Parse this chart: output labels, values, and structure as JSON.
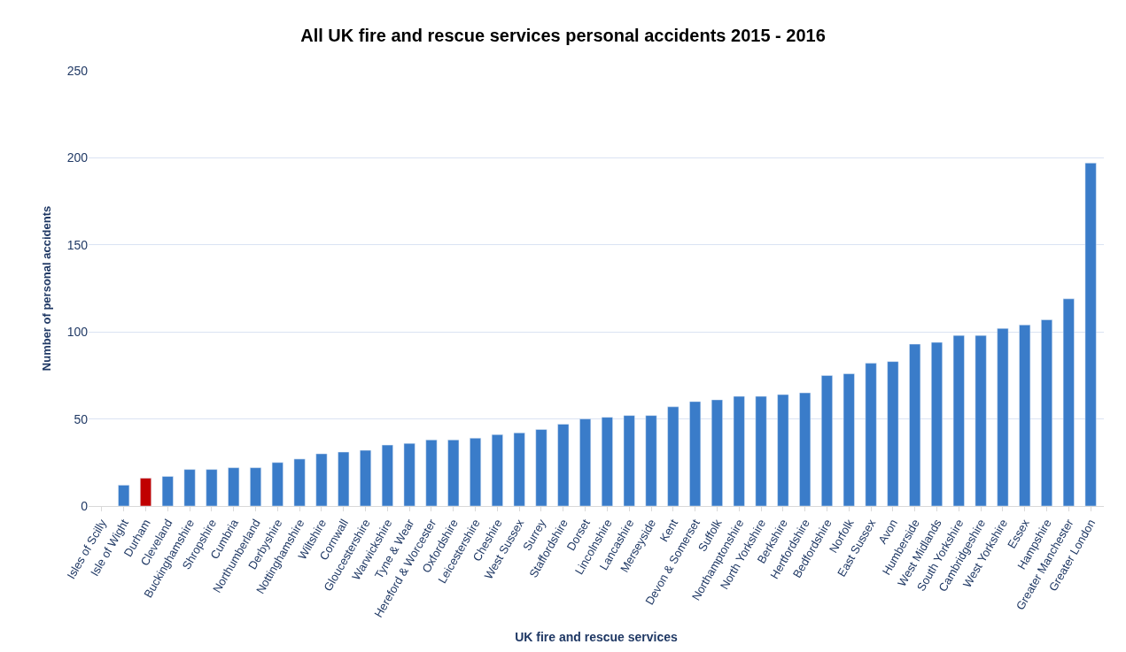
{
  "chart_data": {
    "type": "bar",
    "title": "All UK fire and rescue services personal accidents 2015 - 2016",
    "xlabel": "UK fire and rescue services",
    "ylabel": "Number of personal accidents",
    "categories": [
      "Isles of Scilly",
      "Isle of Wight",
      "Durham",
      "Cleveland",
      "Buckinghamshire",
      "Shropshire",
      "Cumbria",
      "Northumberland",
      "Derbyshire",
      "Nottinghamshire",
      "Wiltshire",
      "Cornwall",
      "Gloucestershire",
      "Warwickshire",
      "Tyne & Wear",
      "Hereford & Worcester",
      "Oxfordshire",
      "Leicestershire",
      "Cheshire",
      "West Sussex",
      "Surrey",
      "Staffordshire",
      "Dorset",
      "Lincolnshire",
      "Lancashire",
      "Merseyside",
      "Kent",
      "Devon & Somerset",
      "Suffolk",
      "Northamptonshire",
      "North Yorkshire",
      "Berkshire",
      "Hertfordshire",
      "Bedfordshire",
      "Norfolk",
      "East Sussex",
      "Avon",
      "Humberside",
      "West Midlands",
      "South Yorkshire",
      "Cambridgeshire",
      "West Yorkshire",
      "Essex",
      "Hampshire",
      "Greater Manchester",
      "Greater London"
    ],
    "values": [
      null,
      12,
      16,
      17,
      21,
      21,
      22,
      22,
      25,
      27,
      30,
      31,
      32,
      35,
      36,
      38,
      38,
      39,
      41,
      42,
      44,
      47,
      50,
      51,
      52,
      52,
      57,
      60,
      61,
      63,
      63,
      64,
      65,
      75,
      76,
      82,
      83,
      93,
      94,
      98,
      98,
      102,
      104,
      107,
      119,
      197
    ],
    "colors": [
      "#3a7cc9",
      "#3a7cc9",
      "#c00000",
      "#3a7cc9",
      "#3a7cc9",
      "#3a7cc9",
      "#3a7cc9",
      "#3a7cc9",
      "#3a7cc9",
      "#3a7cc9",
      "#3a7cc9",
      "#3a7cc9",
      "#3a7cc9",
      "#3a7cc9",
      "#3a7cc9",
      "#3a7cc9",
      "#3a7cc9",
      "#3a7cc9",
      "#3a7cc9",
      "#3a7cc9",
      "#3a7cc9",
      "#3a7cc9",
      "#3a7cc9",
      "#3a7cc9",
      "#3a7cc9",
      "#3a7cc9",
      "#3a7cc9",
      "#3a7cc9",
      "#3a7cc9",
      "#3a7cc9",
      "#3a7cc9",
      "#3a7cc9",
      "#3a7cc9",
      "#3a7cc9",
      "#3a7cc9",
      "#3a7cc9",
      "#3a7cc9",
      "#3a7cc9",
      "#3a7cc9",
      "#3a7cc9",
      "#3a7cc9",
      "#3a7cc9",
      "#3a7cc9",
      "#3a7cc9",
      "#3a7cc9",
      "#3a7cc9"
    ],
    "ylim": [
      0,
      250
    ],
    "yticks": [
      0,
      50,
      100,
      150,
      200,
      250
    ],
    "grid": "y"
  }
}
